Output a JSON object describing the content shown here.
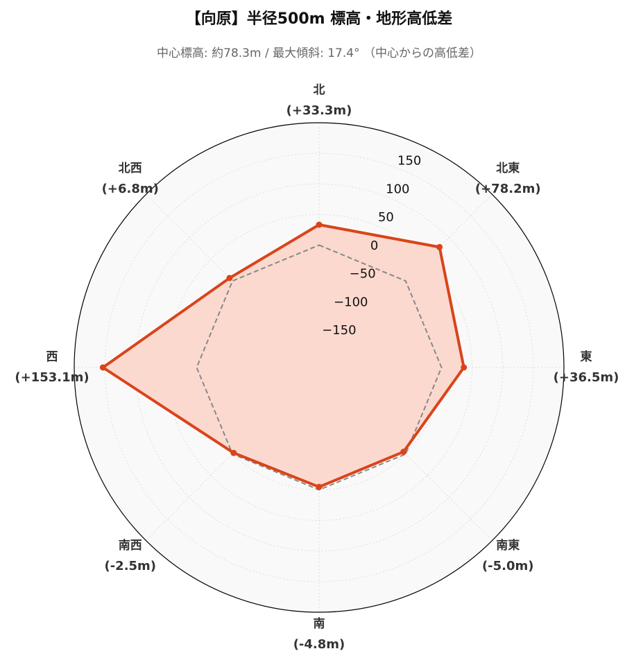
{
  "chart_data": {
    "type": "radar",
    "title": "【向原】半径500m 標高・地形高低差",
    "subtitle": "中心標高: 約78.3m / 最大傾斜: 17.4°  （中心からの高低差）",
    "categories": [
      "北",
      "北東",
      "東",
      "南東",
      "南",
      "南西",
      "西",
      "北西"
    ],
    "series": [
      {
        "color": "#d9441a",
        "fill": "#fbd9cf",
        "values": [
          33.3,
          78.2,
          36.5,
          -5.0,
          -4.8,
          -2.5,
          153.1,
          6.8
        ],
        "value_labels": [
          "(+33.3m)",
          "(+78.2m)",
          "(+36.5m)",
          "(-5.0m)",
          "(-4.8m)",
          "(-2.5m)",
          "(+153.1m)",
          "(+6.8m)"
        ]
      }
    ],
    "reference_line": {
      "value": 0,
      "color": "#888888",
      "style": "dashed"
    },
    "rlim": [
      -200,
      200
    ],
    "rticks": [
      {
        "value": -150,
        "label": "−150"
      },
      {
        "value": -100,
        "label": "−100"
      },
      {
        "value": -50,
        "label": "−50"
      },
      0,
      50,
      100,
      150
    ],
    "grid": true
  }
}
